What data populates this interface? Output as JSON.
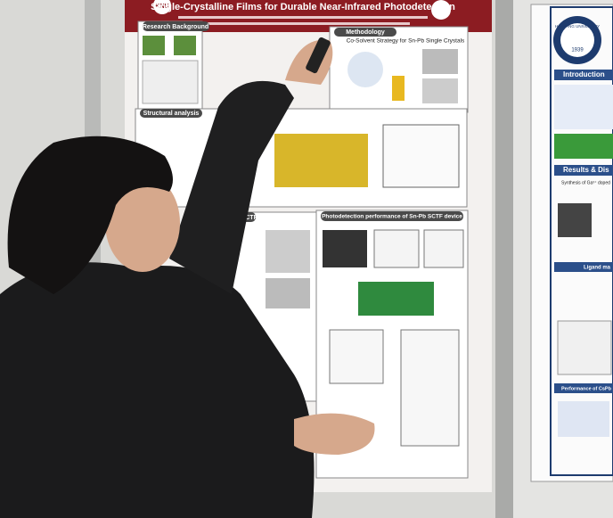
{
  "left_poster": {
    "header": {
      "logo": "KNU",
      "title": "Single-Crystalline Films for Durable Near-Infrared Photodetection"
    },
    "sections": [
      {
        "title": "Research Background"
      },
      {
        "title": "Methodology",
        "subtitle": "Co-Solvent Strategy for Sn-Pb Single Crystals"
      },
      {
        "title": "Structural analysis"
      },
      {
        "title": "Analysis of Sn-Pb SCTF"
      },
      {
        "title": "Photodetection performance of Sn-Pb SCTF device"
      }
    ]
  },
  "right_poster": {
    "logo": {
      "name": "HANYANG UNIVERSITY",
      "year": "1939"
    },
    "sections": [
      {
        "title": "Introduction"
      },
      {
        "title": "Results & Dis"
      },
      {
        "title": "Synthesis of Ga³⁺ doped"
      },
      {
        "title": "Ligand ma"
      },
      {
        "title": "Performance of CsPb"
      }
    ]
  }
}
